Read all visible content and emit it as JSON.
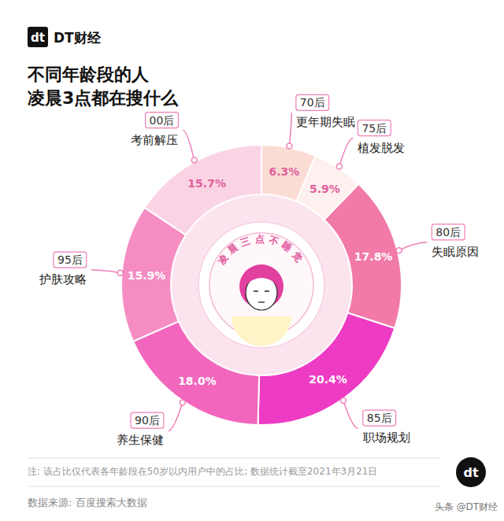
{
  "chart_data": {
    "type": "pie",
    "title": "不同年龄段的人\n凌晨3点都在搜什么",
    "brand": "DT财经",
    "logo": "dt",
    "center_badge": "凌晨三点不睡觉",
    "categories": [
      "70后",
      "75后",
      "80后",
      "85后",
      "90后",
      "95后",
      "00后"
    ],
    "topics": [
      "更年期失眠",
      "植发脱发",
      "失眠原因",
      "职场规划",
      "养生保健",
      "护肤攻略",
      "考前解压"
    ],
    "values": [
      6.3,
      5.9,
      17.8,
      20.4,
      18.0,
      15.9,
      15.7
    ],
    "value_labels": [
      "6.3%",
      "5.9%",
      "17.8%",
      "20.4%",
      "18.0%",
      "15.9%",
      "15.7%"
    ],
    "colors": [
      "#fbdcd4",
      "#fdf0ee",
      "#f27aa8",
      "#ee3bc4",
      "#f266bd",
      "#f58dc3",
      "#fad4e4"
    ],
    "data_labels": true,
    "note": "注: 该占比仅代表各年龄段在50岁以内用户中的占比; 数据统计截至2021年3月21日",
    "source": "数据来源: 百度搜索大数据",
    "watermark": "头条 @DT财经"
  }
}
